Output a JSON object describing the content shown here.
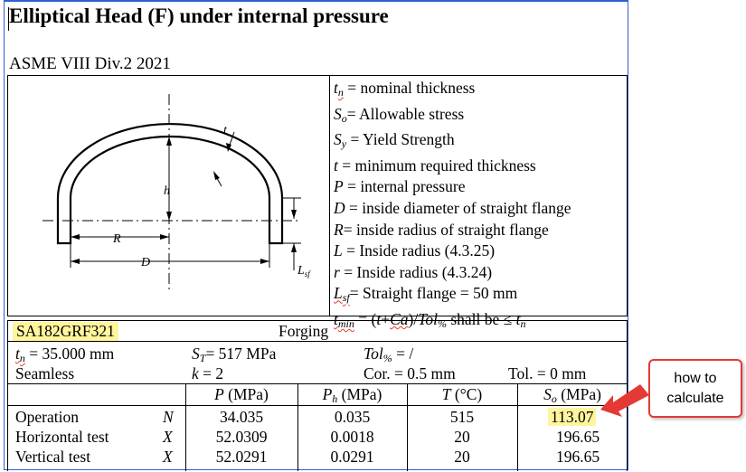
{
  "title": "Elliptical Head (F) under internal pressure",
  "standard": "ASME VIII Div.2 2021",
  "diagram": {
    "labels": {
      "t": "t",
      "h": "h",
      "R": "R",
      "D": "D",
      "Lsf_main": "L",
      "Lsf_sub": "sf"
    }
  },
  "definitions": {
    "tn": {
      "sym": "t",
      "sub": "n",
      "text": " = nominal thickness"
    },
    "So": {
      "sym": "S",
      "sub": "o",
      "text": "= Allowable stress"
    },
    "Sy": {
      "sym": "S",
      "sub": "y",
      "text": " = Yield Strength"
    },
    "t": {
      "sym": "t",
      "text": " = minimum required thickness"
    },
    "P": {
      "sym": "P",
      "text": " = internal pressure"
    },
    "D": {
      "sym": "D",
      "text": " = inside diameter of straight flange"
    },
    "R": {
      "sym": "R",
      "text": "= inside radius of straight flange"
    },
    "L": {
      "sym": "L",
      "text": " = Inside radius (4.3.25)"
    },
    "r": {
      "sym": "r",
      "text": " = Inside radius (4.3.24)"
    },
    "Lsf": {
      "sym": "L",
      "sub": "sf",
      "text": "= Straight flange = 50 mm"
    },
    "tmin": {
      "sym": "t",
      "sub": "min",
      "eq": " = (",
      "t": "t",
      "plus": "+",
      "ca": "Ca",
      "close": ")/",
      "tol": "Tol",
      "tolsub": "%",
      "shall": " shall be ≤ ",
      "tn": "t",
      "tnsub": "n"
    }
  },
  "material": {
    "name": "SA182GRF321",
    "form": "Forging",
    "tn_label": "t",
    "tn_sub": "n",
    "tn_value": " = 35.000 mm",
    "st_label": "S",
    "st_sub": "T",
    "st_value": "= 517 MPa",
    "tol_label": "Tol",
    "tol_sub": "%",
    "tol_value": " = /",
    "seam": "Seamless",
    "k_label": "k",
    "k_value": " = 2",
    "corr": "Cor. = 0.5 mm",
    "tol_abs": "Tol. = 0 mm"
  },
  "table": {
    "headers": [
      {
        "sym": "P",
        "sub": "",
        "unit": " (MPa)"
      },
      {
        "sym": "P",
        "sub": "h",
        "unit": " (MPa)"
      },
      {
        "sym": "T",
        "sub": "",
        "unit": " (°C)"
      },
      {
        "sym": "S",
        "sub": "o",
        "unit": " (MPa)"
      }
    ],
    "rows": [
      {
        "name": "Operation",
        "flag": "N",
        "P": "34.035",
        "Ph": "0.035",
        "T": "515",
        "So": "113.07"
      },
      {
        "name": "Horizontal test",
        "flag": "X",
        "P": "52.0309",
        "Ph": "0.0018",
        "T": "20",
        "So": "196.65"
      },
      {
        "name": "Vertical test",
        "flag": "X",
        "P": "52.0291",
        "Ph": "0.0291",
        "T": "20",
        "So": "196.65"
      }
    ]
  },
  "callout": {
    "line1": "how to",
    "line2": "calculate"
  },
  "colors": {
    "highlight": "#fff59d",
    "callout_border": "#e53935",
    "selection": "#2f5fd0"
  }
}
